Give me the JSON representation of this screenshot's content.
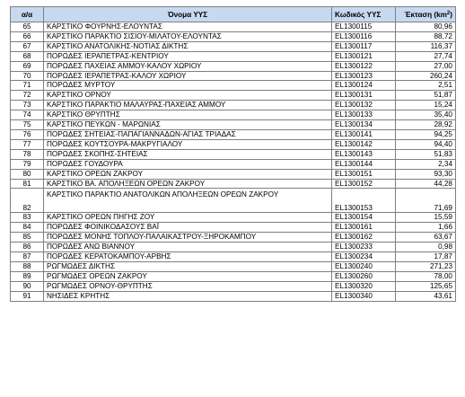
{
  "table": {
    "headers": {
      "num": "α/α",
      "name": "Όνομα ΥΥΣ",
      "code": "Κωδικός ΥΥΣ",
      "area": "Έκταση (km",
      "area_sup": "2",
      "area_close": ")"
    },
    "rows": [
      {
        "num": "65",
        "name": "ΚΑΡΣΤΙΚΟ ΦΟΥΡΝΗΣ-ΕΛΟΥΝΤΑΣ",
        "code": "EL1300115",
        "area": "80,96"
      },
      {
        "num": "66",
        "name": "ΚΑΡΣΤΙΚΟ ΠΑΡΑΚΤΙΟ ΣΙΣΙΟΥ-ΜΙΛΑΤΟΥ-ΕΛΟΥΝΤΑΣ",
        "code": "EL1300116",
        "area": "88,72"
      },
      {
        "num": "67",
        "name": "ΚΑΡΣΤΙΚΟ ΑΝΑΤΟΛΙΚΗΣ-ΝΟΤΙΑΣ ΔΙΚΤΗΣ",
        "code": "EL1300117",
        "area": "116,37"
      },
      {
        "num": "68",
        "name": "ΠΟΡΩΔΕΣ ΙΕΡΑΠΕΤΡΑΣ-ΚΕΝΤΡΙΟΥ",
        "code": "EL1300121",
        "area": "27,74"
      },
      {
        "num": "69",
        "name": "ΠΟΡΩΔΕΣ ΠΑΧΕΙΑΣ ΑΜΜΟΥ-ΚΑΛΟΥ ΧΩΡΙΟΥ",
        "code": "EL1300122",
        "area": "27,00"
      },
      {
        "num": "70",
        "name": "ΠΟΡΩΔΕΣ ΙΕΡΑΠΕΤΡΑΣ-ΚΑΛΟΥ ΧΩΡΙΟΥ",
        "code": "EL1300123",
        "area": "260,24"
      },
      {
        "num": "71",
        "name": "ΠΟΡΩΔΕΣ ΜΥΡΤΟΥ",
        "code": "EL1300124",
        "area": "2,51"
      },
      {
        "num": "72",
        "name": "ΚΑΡΣΤΙΚΟ ΟΡΝΟΥ",
        "code": "EL1300131",
        "area": "51,87"
      },
      {
        "num": "73",
        "name": "ΚΑΡΣΤΙΚΟ ΠΑΡΑΚΤΙΟ ΜΑΛΑΥΡΑΣ-ΠΑΧΕΙΑΣ ΑΜΜΟΥ",
        "code": "EL1300132",
        "area": "15,24"
      },
      {
        "num": "74",
        "name": "ΚΑΡΣΤΙΚΟ ΘΡΥΠΤΗΣ",
        "code": "EL1300133",
        "area": "35,40"
      },
      {
        "num": "75",
        "name": "ΚΑΡΣΤΙΚΟ ΠΕΥΚΩΝ - ΜΑΡΩΝΙΑΣ",
        "code": "EL1300134",
        "area": "28,92"
      },
      {
        "num": "76",
        "name": "ΠΟΡΩΔΕΣ ΣΗΤΕΙΑΣ-ΠΑΠΑΓΙΑΝΝΑΔΩΝ-ΑΓΙΑΣ ΤΡΙΑΔΑΣ",
        "code": "EL1300141",
        "area": "94,25"
      },
      {
        "num": "77",
        "name": "ΠΟΡΩΔΕΣ ΚΟΥΤΣΟΥΡΑ-ΜΑΚΡΥΓΙΑΛΟΥ",
        "code": "EL1300142",
        "area": "94,40"
      },
      {
        "num": "78",
        "name": "ΠΟΡΩΔΕΣ ΣΚΟΠΗΣ-ΣΗΤΕΙΑΣ",
        "code": "EL1300143",
        "area": "51,83"
      },
      {
        "num": "79",
        "name": "ΠΟΡΩΔΕΣ ΓΟΥΔΟΥΡΑ",
        "code": "EL1300144",
        "area": "2,34"
      },
      {
        "num": "80",
        "name": "ΚΑΡΣΤΙΚΟ ΟΡΕΩΝ ΖΑΚΡΟΥ",
        "code": "EL1300151",
        "area": "93,30"
      },
      {
        "num": "81",
        "name": "ΚΑΡΣΤΙΚΟ ΒΑ. ΑΠΟΛΗΞΕΩΝ ΟΡΕΩΝ ΖΑΚΡΟΥ",
        "code": "EL1300152",
        "area": "44,28"
      },
      {
        "num": "82",
        "name": "ΚΑΡΣΤΙΚΟ ΠΑΡΑΚΤΙΟ ΑΝΑΤΟΛΙΚΩΝ ΑΠΟΛΗΞΕΩΝ ΟΡΕΩΝ ΖΑΚΡΟΥ",
        "code": "EL1300153",
        "area": "71,69",
        "tall": true
      },
      {
        "num": "83",
        "name": "ΚΑΡΣΤΙΚΟ ΟΡΕΩΝ ΠΗΓΗΣ ΖΟΥ",
        "code": "EL1300154",
        "area": "15,59"
      },
      {
        "num": "84",
        "name": "ΠΟΡΩΔΕΣ ΦΟΙΝΙΚΟΔΑΣΟΥΣ ΒΑΪ",
        "code": "EL1300161",
        "area": "1,66"
      },
      {
        "num": "85",
        "name": "ΠΟΡΩΔΕΣ ΜΟΝΗΣ ΤΟΠΛΟΥ-ΠΑΛΑΙΚΑΣΤΡΟΥ-ΞΗΡΟΚΑΜΠΟΥ",
        "code": "EL1300162",
        "area": "63,67"
      },
      {
        "num": "86",
        "name": "ΠΟΡΩΔΕΣ ΑΝΩ ΒΙΑΝΝΟΥ",
        "code": "EL1300233",
        "area": "0,98"
      },
      {
        "num": "87",
        "name": "ΠΟΡΩΔΕΣ ΚΕΡΑΤΟΚΑΜΠΟΥ-ΑΡΒΗΣ",
        "code": "EL1300234",
        "area": "17,87"
      },
      {
        "num": "88",
        "name": "ΡΩΓΜΩΔΕΣ ΔΙΚΤΗΣ",
        "code": "EL1300240",
        "area": "271,23"
      },
      {
        "num": "89",
        "name": "ΡΩΓΜΩΔΕΣ ΟΡΕΩΝ ΖΑΚΡΟΥ",
        "code": "EL1300260",
        "area": "78,00"
      },
      {
        "num": "90",
        "name": "ΡΩΓΜΩΔΕΣ ΟΡΝΟΥ-ΘΡΥΠΤΗΣ",
        "code": "EL1300320",
        "area": "125,65"
      },
      {
        "num": "91",
        "name": "ΝΗΣΙΔΕΣ ΚΡΗΤΗΣ",
        "code": "EL1300340",
        "area": "43,61"
      }
    ]
  }
}
